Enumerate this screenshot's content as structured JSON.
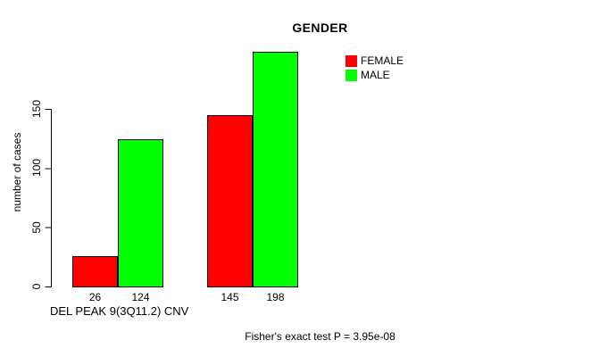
{
  "window": {
    "background": "#ffffff"
  },
  "chart_data": {
    "type": "bar",
    "title": "GENDER",
    "ylabel": "number of cases",
    "xlabel": "DEL PEAK 9(3Q11.2) CNV",
    "categories": [
      "",
      ""
    ],
    "series": [
      {
        "name": "FEMALE",
        "color": "#ff0000",
        "values": [
          26,
          145
        ]
      },
      {
        "name": "MALE",
        "color": "#00ff00",
        "values": [
          124,
          198
        ]
      }
    ],
    "bar_value_labels": [
      "26",
      "124",
      "145",
      "198"
    ],
    "yticks": [
      0,
      50,
      100,
      150
    ],
    "ylim": [
      0,
      150
    ],
    "grid": false,
    "legend": {
      "position": "top-right",
      "entries": [
        "FEMALE",
        "MALE"
      ]
    },
    "annotation": "Fisher's exact test P = 3.95e-08"
  },
  "colors": {
    "axis": "#000000",
    "text": "#000000",
    "bar_border": "#000000",
    "female": "#ff0000",
    "male": "#00ff00"
  }
}
